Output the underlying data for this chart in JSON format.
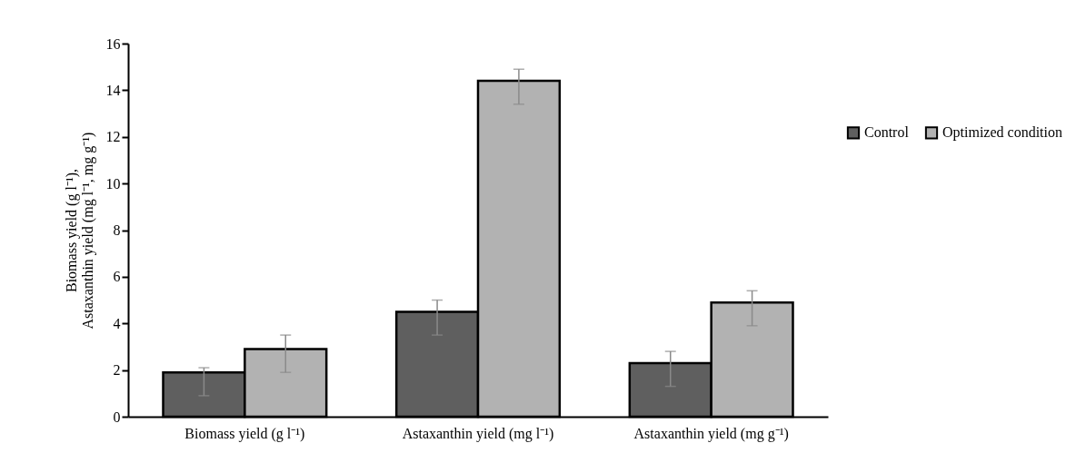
{
  "chart_data": {
    "type": "bar",
    "ylabel": "Biomass yield (g l⁻¹),\nAstaxanthin yield (mg l⁻¹, mg g⁻¹)",
    "categories": [
      "Biomass yield    (g l⁻¹)",
      "Astaxanthin yield    (mg l⁻¹)",
      "Astaxanthin yield    (mg g⁻¹)"
    ],
    "series": [
      {
        "name": "Control",
        "color": "#5f5f5f",
        "values": [
          1.9,
          4.5,
          2.3
        ],
        "errors": [
          [
            0.9,
            2.1
          ],
          [
            3.5,
            5.0
          ],
          [
            1.3,
            2.8
          ]
        ]
      },
      {
        "name": "Optimized condition",
        "color": "#b2b2b2",
        "values": [
          2.9,
          14.4,
          4.9
        ],
        "errors": [
          [
            1.9,
            3.5
          ],
          [
            13.4,
            14.9
          ],
          [
            3.9,
            5.4
          ]
        ]
      }
    ],
    "ylim": [
      0,
      16
    ],
    "yticks": [
      0,
      2,
      4,
      6,
      8,
      10,
      12,
      14,
      16
    ],
    "grid": false,
    "legend": "right"
  }
}
